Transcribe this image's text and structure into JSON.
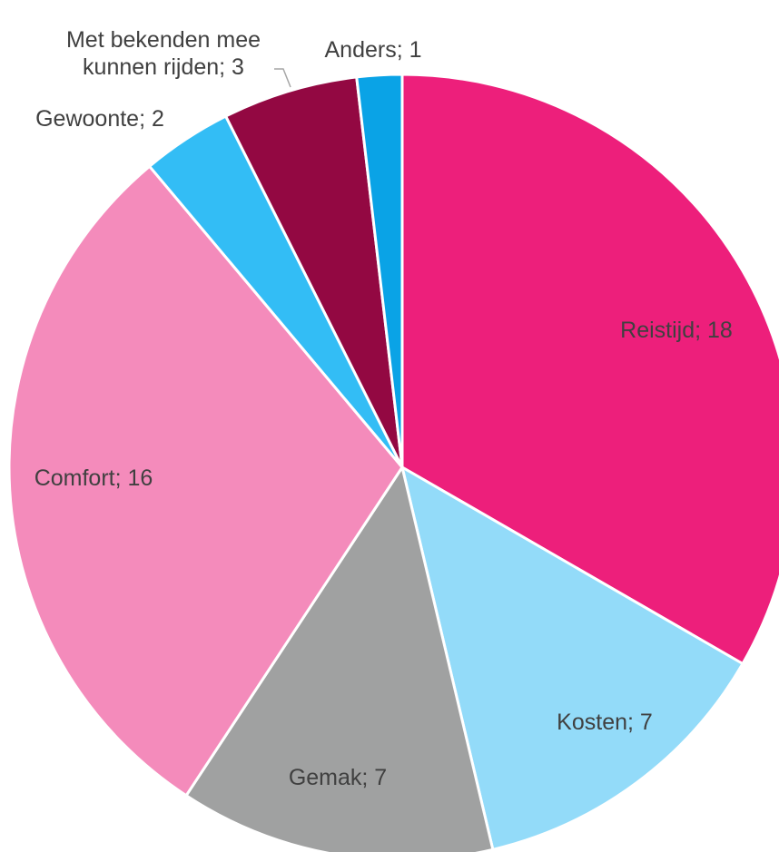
{
  "chart_data": {
    "type": "pie",
    "categories": [
      "Reistijd",
      "Kosten",
      "Gemak",
      "Comfort",
      "Gewoonte",
      "Met bekenden mee kunnen rijden",
      "Anders"
    ],
    "values": [
      18,
      7,
      7,
      16,
      2,
      3,
      1
    ],
    "value_labels": [
      "Reistijd; 18",
      "Kosten; 7",
      "Gemak; 7",
      "Comfort; 16",
      "Gewoonte; 2",
      "Met bekenden mee\nkunnen rijden; 3",
      "Anders; 1"
    ],
    "colors": [
      "#ed1f7b",
      "#93dbf9",
      "#a0a1a1",
      "#f48bbb",
      "#33bdf5",
      "#930842",
      "#0aa3e6"
    ]
  }
}
